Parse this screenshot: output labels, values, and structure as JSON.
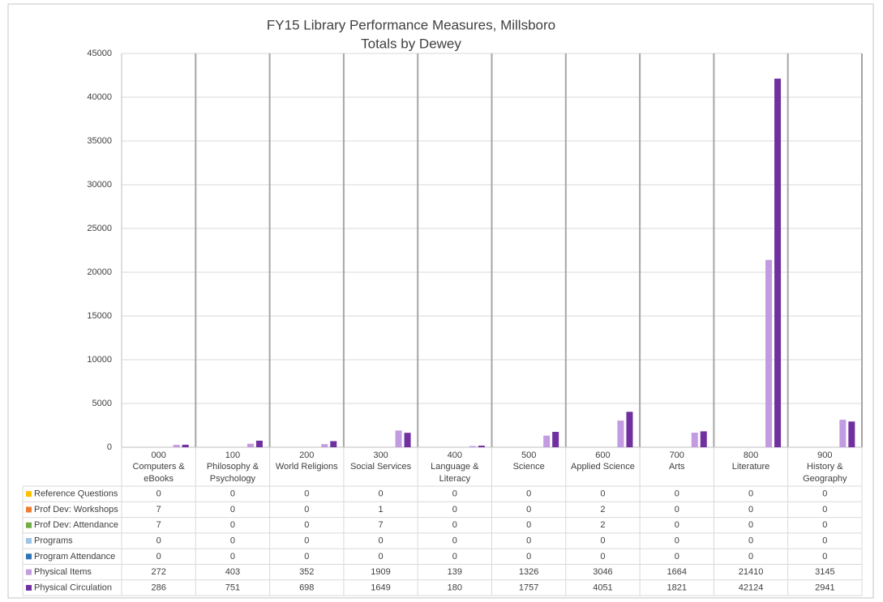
{
  "chart_data": {
    "type": "bar",
    "title": "FY15 Library Performance Measures, Millsboro",
    "subtitle": "Totals by Dewey",
    "categories": [
      [
        "000",
        "Computers & eBooks"
      ],
      [
        "100",
        "Philosophy & Psychology"
      ],
      [
        "200",
        "World Religions"
      ],
      [
        "300",
        "Social Services"
      ],
      [
        "400",
        "Language & Literacy"
      ],
      [
        "500",
        "Science"
      ],
      [
        "600",
        "Applied Science"
      ],
      [
        "700",
        "Arts"
      ],
      [
        "800",
        "Literature"
      ],
      [
        "900",
        "History & Geography"
      ]
    ],
    "series": [
      {
        "name": "Reference Questions",
        "color": "#ffc000",
        "values": [
          0,
          0,
          0,
          0,
          0,
          0,
          0,
          0,
          0,
          0
        ]
      },
      {
        "name": "Prof Dev: Workshops",
        "color": "#ed7d31",
        "values": [
          7,
          0,
          0,
          1,
          0,
          0,
          2,
          0,
          0,
          0
        ]
      },
      {
        "name": "Prof Dev: Attendance",
        "color": "#70ad47",
        "values": [
          7,
          0,
          0,
          7,
          0,
          0,
          2,
          0,
          0,
          0
        ]
      },
      {
        "name": "Programs",
        "color": "#9dc3e6",
        "values": [
          0,
          0,
          0,
          0,
          0,
          0,
          0,
          0,
          0,
          0
        ]
      },
      {
        "name": "Program Attendance",
        "color": "#2e75b6",
        "values": [
          0,
          0,
          0,
          0,
          0,
          0,
          0,
          0,
          0,
          0
        ]
      },
      {
        "name": "Physical Items",
        "color": "#c39be1",
        "values": [
          272,
          403,
          352,
          1909,
          139,
          1326,
          3046,
          1664,
          21410,
          3145
        ]
      },
      {
        "name": "Physical Circulation",
        "color": "#7030a0",
        "values": [
          286,
          751,
          698,
          1649,
          180,
          1757,
          4051,
          1821,
          42124,
          2941
        ]
      }
    ],
    "ylim": [
      0,
      45000
    ],
    "yticks": [
      0,
      5000,
      10000,
      15000,
      20000,
      25000,
      30000,
      35000,
      40000,
      45000
    ],
    "grid": true
  }
}
